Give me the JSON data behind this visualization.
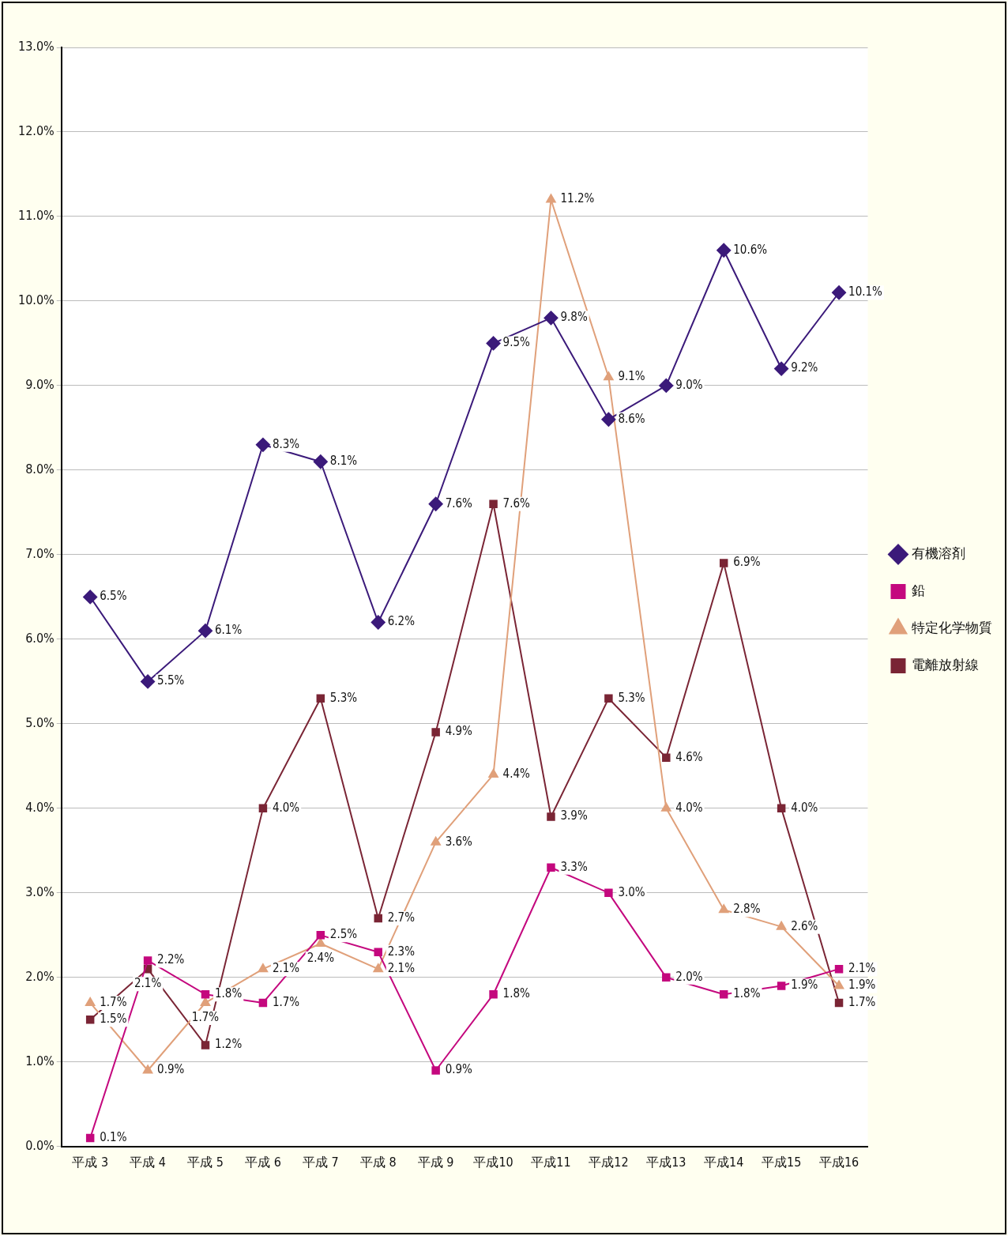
{
  "chart_data": {
    "type": "line",
    "categories": [
      "平成 3",
      "平成 4",
      "平成 5",
      "平成 6",
      "平成 7",
      "平成 8",
      "平成 9",
      "平成10",
      "平成11",
      "平成12",
      "平成13",
      "平成14",
      "平成15",
      "平成16"
    ],
    "series": [
      {
        "name": "有機溶剤",
        "color": "#3b1a7a",
        "marker": "diamond",
        "values": [
          6.5,
          5.5,
          6.1,
          8.3,
          8.1,
          6.2,
          7.6,
          9.5,
          9.8,
          8.6,
          9.0,
          10.6,
          9.2,
          10.1
        ],
        "value_labels": [
          "6.5%",
          "5.5%",
          "6.1%",
          "8.3%",
          "8.1%",
          "6.2%",
          "7.6%",
          "9.5%",
          "9.8%",
          "8.6%",
          "9.0%",
          "10.6%",
          "9.2%",
          "10.1%"
        ]
      },
      {
        "name": "鉛",
        "color": "#c4087e",
        "marker": "square",
        "values": [
          0.1,
          2.2,
          1.8,
          1.7,
          2.5,
          2.3,
          0.9,
          1.8,
          3.3,
          3.0,
          2.0,
          1.8,
          1.9,
          2.1
        ],
        "value_labels": [
          "0.1%",
          "2.2%",
          "1.8%",
          "1.7%",
          "2.5%",
          "2.3%",
          "0.9%",
          "1.8%",
          "3.3%",
          "3.0%",
          "2.0%",
          "1.8%",
          "1.9%",
          "2.1%"
        ]
      },
      {
        "name": "特定化学物質",
        "color": "#e0a07a",
        "marker": "triangle",
        "values": [
          1.7,
          0.9,
          1.7,
          2.1,
          2.4,
          2.1,
          3.6,
          4.4,
          11.2,
          9.1,
          4.0,
          2.8,
          2.6,
          1.9
        ],
        "value_labels": [
          "1.7%",
          "0.9%",
          "1.7%",
          "2.1%",
          "2.4%",
          "2.1%",
          "3.6%",
          "4.4%",
          "11.2%",
          "9.1%",
          "4.0%",
          "2.8%",
          "2.6%",
          "1.9%"
        ]
      },
      {
        "name": "電離放射線",
        "color": "#7a2535",
        "marker": "square",
        "values": [
          1.5,
          2.1,
          1.2,
          4.0,
          5.3,
          2.7,
          4.9,
          7.6,
          3.9,
          5.3,
          4.6,
          6.9,
          4.0,
          1.7
        ],
        "value_labels": [
          "1.5%",
          "2.1%",
          "1.2%",
          "4.0%",
          "5.3%",
          "2.7%",
          "4.9%",
          "7.6%",
          "3.9%",
          "5.3%",
          "4.6%",
          "6.9%",
          "4.0%",
          "1.7%"
        ]
      }
    ],
    "ylim": [
      0,
      13
    ],
    "yticks": [
      {
        "value": 0,
        "label": "0.0%"
      },
      {
        "value": 1,
        "label": "1.0%"
      },
      {
        "value": 2,
        "label": "2.0%"
      },
      {
        "value": 3,
        "label": "3.0%"
      },
      {
        "value": 4,
        "label": "4.0%"
      },
      {
        "value": 5,
        "label": "5.0%"
      },
      {
        "value": 6,
        "label": "6.0%"
      },
      {
        "value": 7,
        "label": "7.0%"
      },
      {
        "value": 8,
        "label": "8.0%"
      },
      {
        "value": 9,
        "label": "9.0%"
      },
      {
        "value": 10,
        "label": "10.0%"
      },
      {
        "value": 11,
        "label": "11.0%"
      },
      {
        "value": 12,
        "label": "12.0%"
      },
      {
        "value": 13,
        "label": "13.0%"
      }
    ],
    "grid": "y",
    "legend": "right",
    "line_style": "solid"
  }
}
